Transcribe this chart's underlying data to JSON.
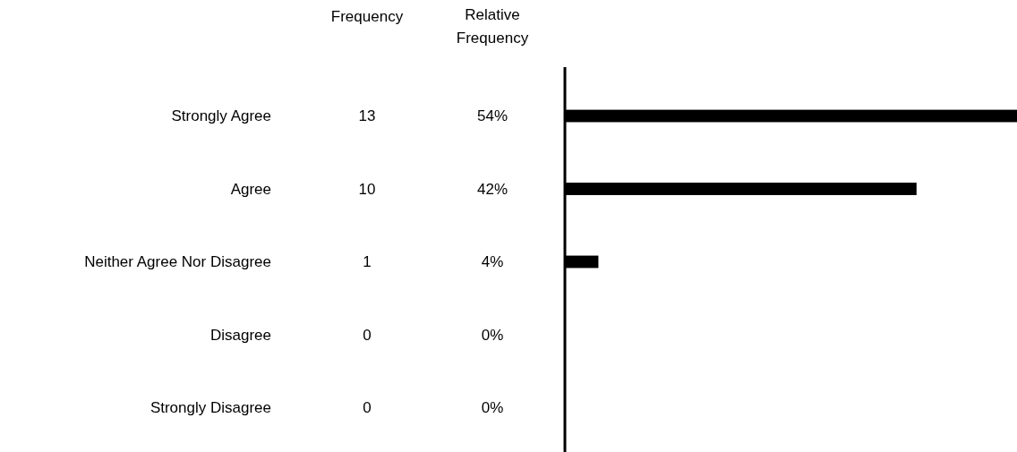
{
  "chart_data": {
    "type": "bar",
    "orientation": "horizontal",
    "categories": [
      "Strongly Agree",
      "Agree",
      "Neither Agree Nor Disagree",
      "Disagree",
      "Strongly Disagree"
    ],
    "values": [
      54,
      42,
      4,
      0,
      0
    ],
    "color": "#000000",
    "value_labels": [
      "54%",
      "42%",
      "4%",
      "0%",
      "0%"
    ],
    "annotations": [
      "Frequency",
      "Relative Frequency",
      "13",
      "10",
      "1",
      "0",
      "0"
    ]
  }
}
